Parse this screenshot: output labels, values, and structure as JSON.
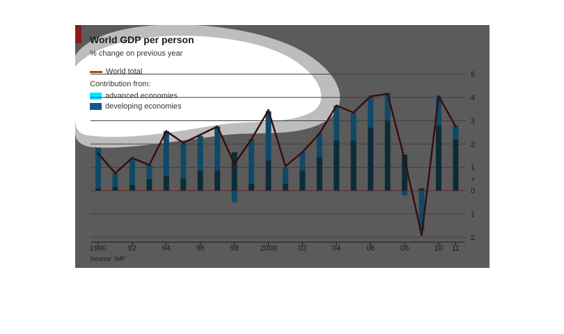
{
  "title": "World GDP per person",
  "subtitle": "% change on previous year",
  "legend": {
    "world_total": "World total",
    "contribution_from": "Contribution from:",
    "advanced": "advanced economies",
    "developing": "developing economies"
  },
  "source": "Source: IMF",
  "colors": {
    "world_total": "#c0392b",
    "advanced": "#00e5ff",
    "developing": "#0a5e86"
  },
  "chart_data": {
    "type": "bar",
    "stacked": true,
    "x": [
      1990,
      1991,
      1992,
      1993,
      1994,
      1995,
      1996,
      1997,
      1998,
      1999,
      2000,
      2001,
      2002,
      2003,
      2004,
      2005,
      2006,
      2007,
      2008,
      2009,
      2010,
      2011
    ],
    "x_tick_labels": [
      "1990",
      "92",
      "94",
      "96",
      "98",
      "2000",
      "02",
      "04",
      "06",
      "08",
      "10",
      "11"
    ],
    "x_tick_years": [
      1990,
      1992,
      1994,
      1996,
      1998,
      2000,
      2002,
      2004,
      2006,
      2008,
      2010,
      2011
    ],
    "y_tick_labels": [
      "5",
      "4",
      "3",
      "2",
      "1",
      "+",
      "0",
      "-",
      "1",
      "2"
    ],
    "ylim": [
      -2,
      5
    ],
    "series": [
      {
        "name": "advanced economies",
        "kind": "bar",
        "values": [
          1.75,
          0.6,
          1.1,
          0.6,
          1.9,
          1.5,
          1.5,
          1.9,
          -0.5,
          1.9,
          2.1,
          0.7,
          0.8,
          1.0,
          1.5,
          1.2,
          1.3,
          1.2,
          -0.2,
          -1.7,
          1.25,
          0.6
        ]
      },
      {
        "name": "developing economies",
        "kind": "bar",
        "values": [
          0.1,
          0.15,
          0.25,
          0.5,
          0.65,
          0.5,
          0.85,
          0.85,
          1.65,
          0.3,
          1.3,
          0.3,
          0.85,
          1.45,
          2.15,
          2.15,
          2.7,
          3.0,
          1.55,
          0.1,
          2.8,
          2.2
        ]
      },
      {
        "name": "World total",
        "kind": "line",
        "values": [
          1.6,
          0.75,
          1.4,
          1.1,
          2.55,
          2.05,
          2.4,
          2.75,
          1.15,
          2.2,
          3.45,
          1.05,
          1.65,
          2.45,
          3.65,
          3.35,
          4.05,
          4.15,
          1.35,
          -1.9,
          4.05,
          2.75
        ]
      }
    ]
  }
}
